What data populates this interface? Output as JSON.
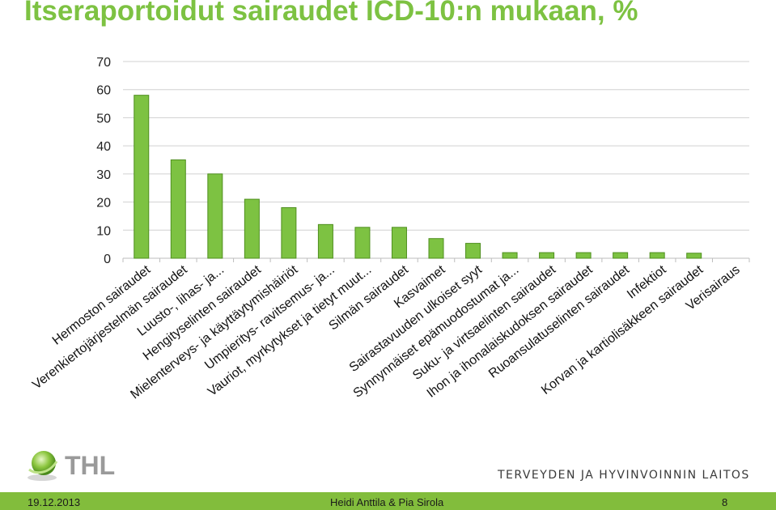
{
  "slide": {
    "title": "Itseraportoidut sairaudet ICD-10:n mukaan, %",
    "logo_text": "THL",
    "institute": "TERVEYDEN JA HYVINVOINNIN LAITOS",
    "date": "19.12.2013",
    "authors": "Heidi Anttila & Pia Sirola",
    "page_number": "8"
  },
  "colors": {
    "bar_fill": "#7dc242",
    "bar_stroke": "#4f8f1f",
    "title": "#7dc242",
    "footer_band": "#82bd3c"
  },
  "chart_data": {
    "type": "bar",
    "title": "",
    "xlabel": "",
    "ylabel": "",
    "ylim": [
      0,
      70
    ],
    "yticks": [
      0,
      10,
      20,
      30,
      40,
      50,
      60,
      70
    ],
    "grid": true,
    "legend": "none",
    "categories": [
      "Hermoston sairaudet",
      "Verenkiertojärjestelmän sairaudet",
      "Luusto-, lihas- ja...",
      "Hengityselinten sairaudet",
      "Mielenterveys- ja käyttäytymishäiriöt",
      "Umpieritys- ravitsemus- ja...",
      "Vauriot, myrkytykset ja tietyt muut...",
      "Silmän sairaudet",
      "Kasvaimet",
      "Sairastavuuden ulkoiset syyt",
      "Synnynnäiset epämuodostumat ja...",
      "Suku- ja virtsaelinten sairaudet",
      "Ihon ja ihonalaiskudoksen sairaudet",
      "Ruoansulatuselinten sairaudet",
      "Infektiot",
      "Korvan ja kartiolisäkkeen sairaudet",
      "Verisairaus"
    ],
    "values": [
      58,
      35,
      30,
      21,
      18,
      12,
      11,
      11,
      7,
      5.3,
      2,
      2,
      2,
      2,
      2,
      1.8,
      0
    ]
  }
}
